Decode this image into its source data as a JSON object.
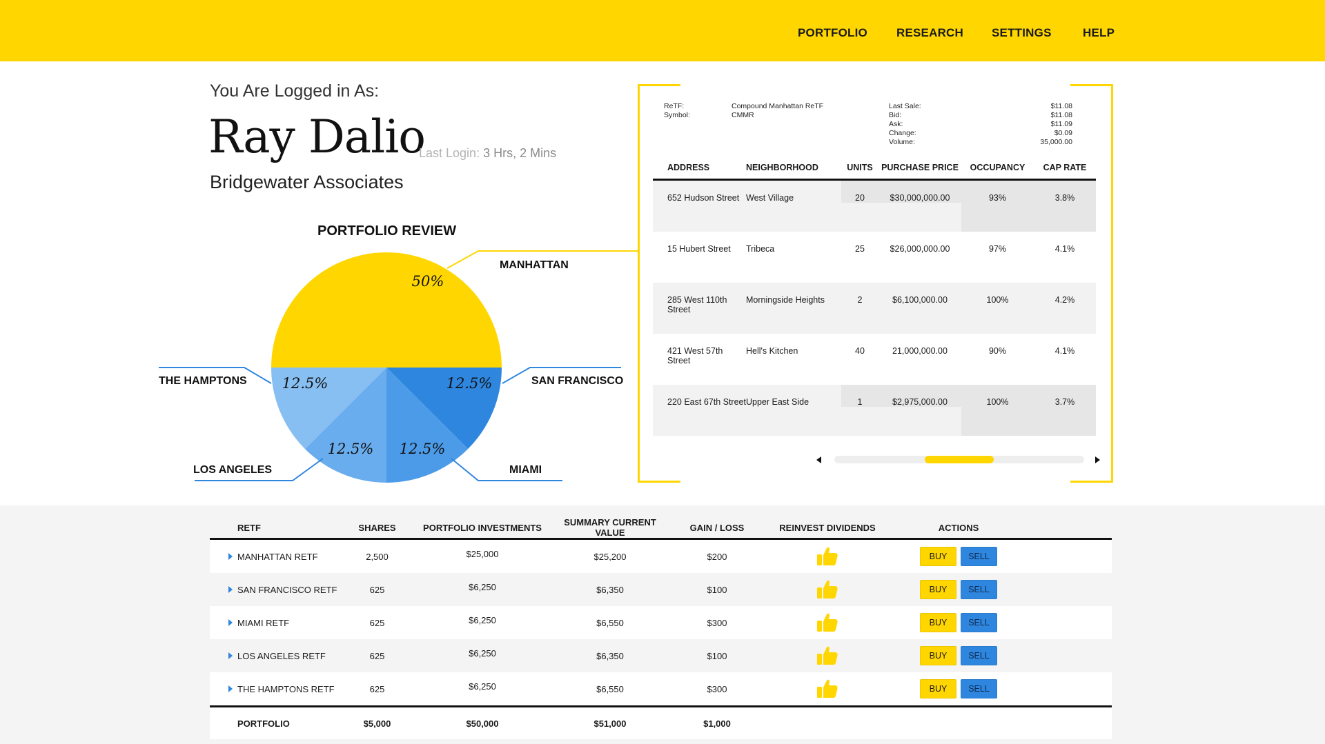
{
  "nav": {
    "items": [
      "PORTFOLIO",
      "RESEARCH",
      "SETTINGS",
      "HELP"
    ]
  },
  "user": {
    "logged_in_label": "You Are Logged in As:",
    "name": "Ray Dalio",
    "last_login_label": "Last Login:",
    "last_login_value": "3 Hrs, 2 Mins",
    "company": "Bridgewater Associates"
  },
  "colors": {
    "accent_yellow": "#FFD600",
    "accent_blue": "#2F86DE",
    "slice_manhattan": "#FFD600",
    "slice_san_francisco": "#2F86DE",
    "slice_miami": "#4C9BE8",
    "slice_los_angeles": "#6AADEE",
    "slice_hamptons": "#88BFF2"
  },
  "chart_data": {
    "type": "pie",
    "title": "PORTFOLIO REVIEW",
    "slices": [
      {
        "name": "MANHATTAN",
        "value": 50,
        "label": "50%"
      },
      {
        "name": "SAN FRANCISCO",
        "value": 12.5,
        "label": "12.5%"
      },
      {
        "name": "MIAMI",
        "value": 12.5,
        "label": "12.5%"
      },
      {
        "name": "LOS ANGELES",
        "value": 12.5,
        "label": "12.5%"
      },
      {
        "name": "THE HAMPTONS",
        "value": 12.5,
        "label": "12.5%"
      }
    ]
  },
  "detail": {
    "retf_label": "ReTF:",
    "retf_value": "Compound Manhattan ReTF",
    "symbol_label": "Symbol:",
    "symbol_value": "CMMR",
    "quote_labels": [
      "Last Sale:",
      "Bid:",
      "Ask:",
      "Change:",
      "Volume:"
    ],
    "quote_values": [
      "$11.08",
      "$11.08",
      "$11.09",
      "$0.09",
      "35,000.00"
    ],
    "columns": [
      "ADDRESS",
      "NEIGHBORHOOD",
      "UNITS",
      "PURCHASE PRICE",
      "OCCUPANCY",
      "CAP RATE"
    ],
    "rows": [
      [
        "652 Hudson Street",
        "West Village",
        "20",
        "$30,000,000.00",
        "93%",
        "3.8%"
      ],
      [
        "15 Hubert Street",
        "Tribeca",
        "25",
        "$26,000,000.00",
        "97%",
        "4.1%"
      ],
      [
        "285 West 110th Street",
        "Morningside Heights",
        "2",
        "$6,100,000.00",
        "100%",
        "4.2%"
      ],
      [
        "421 West 57th Street",
        "Hell's Kitchen",
        "40",
        "21,000,000.00",
        "90%",
        "4.1%"
      ],
      [
        "220 East 67th Street",
        "Upper East Side",
        "1",
        "$2,975,000.00",
        "100%",
        "3.7%"
      ]
    ]
  },
  "holdings": {
    "columns": [
      "RETF",
      "SHARES",
      "PORTFOLIO INVESTMENTS",
      "SUMMARY CURRENT VALUE",
      "GAIN / LOSS",
      "REINVEST DIVIDENDS",
      "ACTIONS"
    ],
    "buy_label": "BUY",
    "sell_label": "SELL",
    "rows": [
      [
        "MANHATTAN RETF",
        "2,500",
        "$25,000",
        "$25,200",
        "$200"
      ],
      [
        "SAN FRANCISCO RETF",
        "625",
        "$6,250",
        "$6,350",
        "$100"
      ],
      [
        "MIAMI RETF",
        "625",
        "$6,250",
        "$6,550",
        "$300"
      ],
      [
        "LOS ANGELES RETF",
        "625",
        "$6,250",
        "$6,350",
        "$100"
      ],
      [
        "THE HAMPTONS RETF",
        "625",
        "$6,250",
        "$6,550",
        "$300"
      ]
    ],
    "totals": [
      "PORTFOLIO",
      "$5,000",
      "$50,000",
      "$51,000",
      "$1,000"
    ]
  }
}
